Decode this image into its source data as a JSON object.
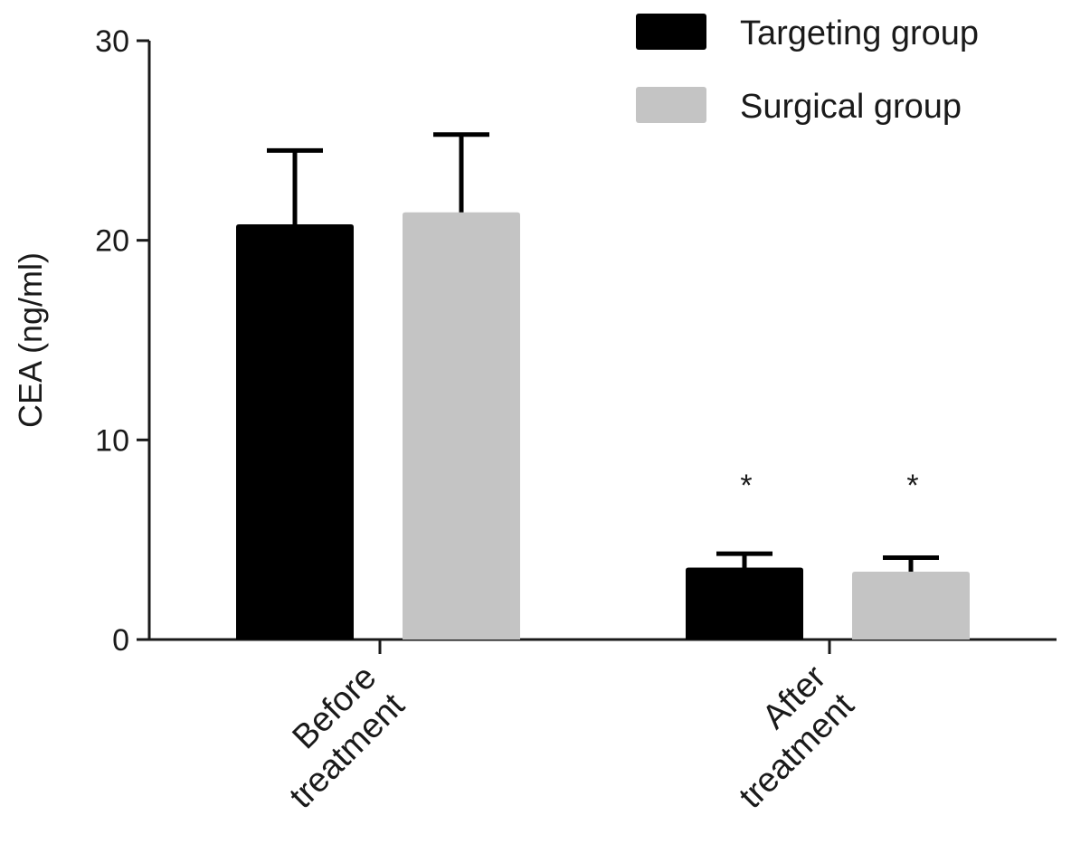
{
  "chart_data": {
    "type": "bar",
    "title": "",
    "xlabel": "",
    "ylabel": "CEA (ng/ml)",
    "ylim": [
      0,
      30
    ],
    "yticks": [
      0,
      10,
      20,
      30
    ],
    "grid": false,
    "legend_position": "top-right",
    "categories": [
      [
        "Before",
        "treatment"
      ],
      [
        "After",
        "treatment"
      ]
    ],
    "series": [
      {
        "name": "Targeting group",
        "color": "#000000",
        "values": [
          20.8,
          3.6
        ],
        "error": [
          3.7,
          0.7
        ]
      },
      {
        "name": "Surgical group",
        "color": "#c4c4c4",
        "values": [
          21.4,
          3.4
        ],
        "error": [
          3.9,
          0.7
        ]
      }
    ],
    "annotations": [
      {
        "category_index": 1,
        "series_index": 0,
        "text": "*"
      },
      {
        "category_index": 1,
        "series_index": 1,
        "text": "*"
      }
    ]
  }
}
